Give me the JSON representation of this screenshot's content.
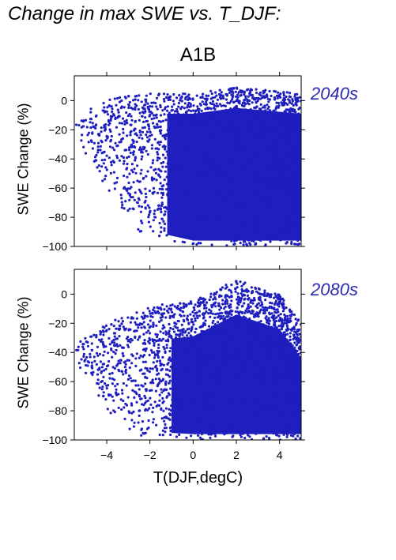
{
  "title": "Change in max SWE vs. T_DJF:",
  "scenario": "A1B",
  "colors": {
    "points": "#1f1fbf",
    "frame": "#000000",
    "period_label": "#2b2bb2"
  },
  "chart_data": [
    {
      "type": "scatter",
      "panel_label": "2040s",
      "xlabel": "T(DJF,degC)",
      "ylabel": "SWE Change (%)",
      "xlim": [
        -5.5,
        5.0
      ],
      "ylim": [
        -100,
        17
      ],
      "yticks": [
        0,
        -20,
        -40,
        -60,
        -80,
        -100
      ],
      "xticks": [
        -4,
        -2,
        0,
        2,
        4
      ],
      "show_xtick_labels": false,
      "grid": false,
      "density": {
        "description_free": true,
        "x_min_cold": -5.5,
        "upper_envelope": [
          [
            -5.5,
            -8
          ],
          [
            -3,
            5
          ],
          [
            0,
            5
          ],
          [
            2,
            9
          ],
          [
            5,
            5
          ]
        ],
        "lower_envelope": [
          [
            -5.5,
            -25
          ],
          [
            -4,
            -60
          ],
          [
            -2.5,
            -90
          ],
          [
            -1.5,
            -95
          ],
          [
            0,
            -100
          ],
          [
            5,
            -100
          ]
        ]
      }
    },
    {
      "type": "scatter",
      "panel_label": "2080s",
      "xlabel": "T(DJF,degC)",
      "ylabel": "SWE Change (%)",
      "xlim": [
        -5.5,
        5.0
      ],
      "ylim": [
        -100,
        17
      ],
      "yticks": [
        0,
        -20,
        -40,
        -60,
        -80,
        -100
      ],
      "xticks": [
        -4,
        -2,
        0,
        2,
        4
      ],
      "show_xtick_labels": true,
      "grid": false,
      "density": {
        "description_free": true,
        "x_min_cold": -5.5,
        "upper_envelope": [
          [
            -5.5,
            -35
          ],
          [
            -4,
            -20
          ],
          [
            -2,
            -8
          ],
          [
            0,
            -5
          ],
          [
            2,
            10
          ],
          [
            4,
            0
          ],
          [
            5,
            -20
          ]
        ],
        "lower_envelope": [
          [
            -5.5,
            -45
          ],
          [
            -4,
            -80
          ],
          [
            -2.5,
            -98
          ],
          [
            0,
            -100
          ],
          [
            5,
            -100
          ]
        ]
      }
    }
  ]
}
